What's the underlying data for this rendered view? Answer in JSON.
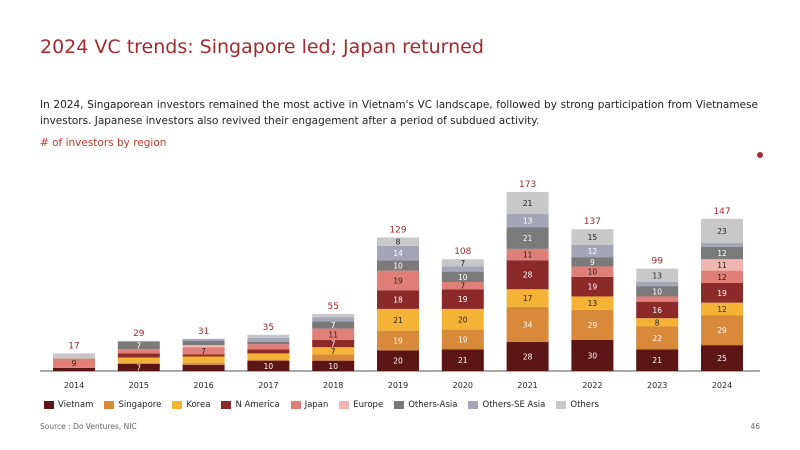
{
  "page": {
    "title": "2024 VC trends: Singapore led; Japan returned",
    "subtitle": "In 2024, Singaporean investors remained the most active in Vietnam's VC landscape, followed by strong participation from Vietnamese investors. Japanese investors also revived their engagement after a period of subdued activity.",
    "ylabel": "# of investors by region",
    "source": "Source : Do Ventures, NIC",
    "page_number": "46"
  },
  "chart_data": {
    "type": "bar",
    "stacked": true,
    "categories": [
      "2014",
      "2015",
      "2016",
      "2017",
      "2018",
      "2019",
      "2020",
      "2021",
      "2022",
      "2023",
      "2024"
    ],
    "totals": [
      17,
      29,
      31,
      35,
      55,
      129,
      108,
      173,
      137,
      99,
      147
    ],
    "series": [
      {
        "name": "Vietnam",
        "color": "#5c1515",
        "values": [
          3,
          7,
          6,
          10,
          10,
          20,
          21,
          28,
          30,
          21,
          25
        ]
      },
      {
        "name": "Singapore",
        "color": "#d9893a",
        "values": [
          0,
          1,
          2,
          1,
          6,
          19,
          19,
          34,
          29,
          22,
          29
        ]
      },
      {
        "name": "Korea",
        "color": "#f5b335",
        "values": [
          0,
          5,
          6,
          6,
          7,
          21,
          20,
          17,
          13,
          8,
          12
        ]
      },
      {
        "name": "N America",
        "color": "#8c2a2a",
        "values": [
          0,
          4,
          2,
          4,
          7,
          18,
          19,
          28,
          19,
          16,
          19
        ]
      },
      {
        "name": "Japan",
        "color": "#e07f78",
        "values": [
          9,
          4,
          7,
          5,
          11,
          19,
          7,
          11,
          10,
          5,
          12
        ]
      },
      {
        "name": "Europe",
        "color": "#f0b5b0",
        "values": [
          0,
          0,
          2,
          0,
          0,
          0,
          0,
          0,
          0,
          0,
          11
        ]
      },
      {
        "name": "Others-Asia",
        "color": "#7a7a7a",
        "values": [
          0,
          7,
          4,
          2,
          7,
          10,
          10,
          21,
          9,
          10,
          12
        ]
      },
      {
        "name": "Others-SE Asia",
        "color": "#a5a5b8",
        "values": [
          0,
          1,
          2,
          4,
          4,
          14,
          5,
          13,
          12,
          4,
          4
        ]
      },
      {
        "name": "Others",
        "color": "#c8c8c8",
        "values": [
          5,
          0,
          0,
          3,
          3,
          8,
          7,
          21,
          15,
          13,
          23
        ]
      }
    ]
  }
}
